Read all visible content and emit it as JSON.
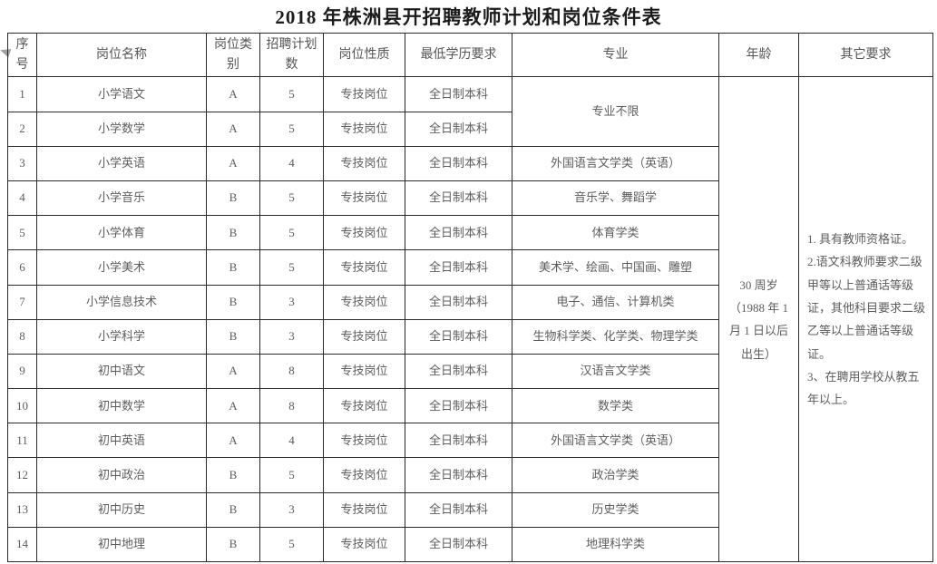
{
  "title": "2018 年株洲县开招聘教师计划和岗位条件表",
  "colors": {
    "background": "#ffffff",
    "border": "#2b2b2b",
    "cell_text": "#5d5d5d",
    "title_text": "#1c1c1c"
  },
  "table": {
    "headers": [
      "序号",
      "岗位名称",
      "岗位类别",
      "招聘计划数",
      "岗位性质",
      "最低学历要求",
      "专业",
      "年龄",
      "其它要求"
    ],
    "rows": [
      {
        "no": "1",
        "name": "小学语文",
        "category": "A",
        "count": "5",
        "nature": "专技岗位",
        "education": "全日制本科",
        "major": "专业不限",
        "major_rowspan": 2
      },
      {
        "no": "2",
        "name": "小学数学",
        "category": "A",
        "count": "5",
        "nature": "专技岗位",
        "education": "全日制本科",
        "major": null
      },
      {
        "no": "3",
        "name": "小学英语",
        "category": "A",
        "count": "4",
        "nature": "专技岗位",
        "education": "全日制本科",
        "major": "外国语言文学类（英语）"
      },
      {
        "no": "4",
        "name": "小学音乐",
        "category": "B",
        "count": "5",
        "nature": "专技岗位",
        "education": "全日制本科",
        "major": "音乐学、舞蹈学"
      },
      {
        "no": "5",
        "name": "小学体育",
        "category": "B",
        "count": "5",
        "nature": "专技岗位",
        "education": "全日制本科",
        "major": "体育学类"
      },
      {
        "no": "6",
        "name": "小学美术",
        "category": "B",
        "count": "5",
        "nature": "专技岗位",
        "education": "全日制本科",
        "major": "美术学、绘画、中国画、雕塑"
      },
      {
        "no": "7",
        "name": "小学信息技术",
        "category": "B",
        "count": "3",
        "nature": "专技岗位",
        "education": "全日制本科",
        "major": "电子、通信、计算机类"
      },
      {
        "no": "8",
        "name": "小学科学",
        "category": "B",
        "count": "3",
        "nature": "专技岗位",
        "education": "全日制本科",
        "major": "生物科学类、化学类、物理学类"
      },
      {
        "no": "9",
        "name": "初中语文",
        "category": "A",
        "count": "8",
        "nature": "专技岗位",
        "education": "全日制本科",
        "major": "汉语言文学类"
      },
      {
        "no": "10",
        "name": "初中数学",
        "category": "A",
        "count": "8",
        "nature": "专技岗位",
        "education": "全日制本科",
        "major": "数学类"
      },
      {
        "no": "11",
        "name": "初中英语",
        "category": "A",
        "count": "4",
        "nature": "专技岗位",
        "education": "全日制本科",
        "major": "外国语言文学类（英语）"
      },
      {
        "no": "12",
        "name": "初中政治",
        "category": "B",
        "count": "5",
        "nature": "专技岗位",
        "education": "全日制本科",
        "major": "政治学类"
      },
      {
        "no": "13",
        "name": "初中历史",
        "category": "B",
        "count": "3",
        "nature": "专技岗位",
        "education": "全日制本科",
        "major": "历史学类"
      },
      {
        "no": "14",
        "name": "初中地理",
        "category": "B",
        "count": "5",
        "nature": "专技岗位",
        "education": "全日制本科",
        "major": "地理科学类"
      }
    ],
    "merged": {
      "age": "30 周岁（1988 年 1 月 1 日以后出生）",
      "other_requirements": [
        "1. 具有教师资格证。",
        "2.语文科教师要求二级甲等以上普通话等级证，其他科目要求二级乙等以上普通话等级证。",
        "3、在聘用学校从教五年以上。"
      ]
    }
  }
}
